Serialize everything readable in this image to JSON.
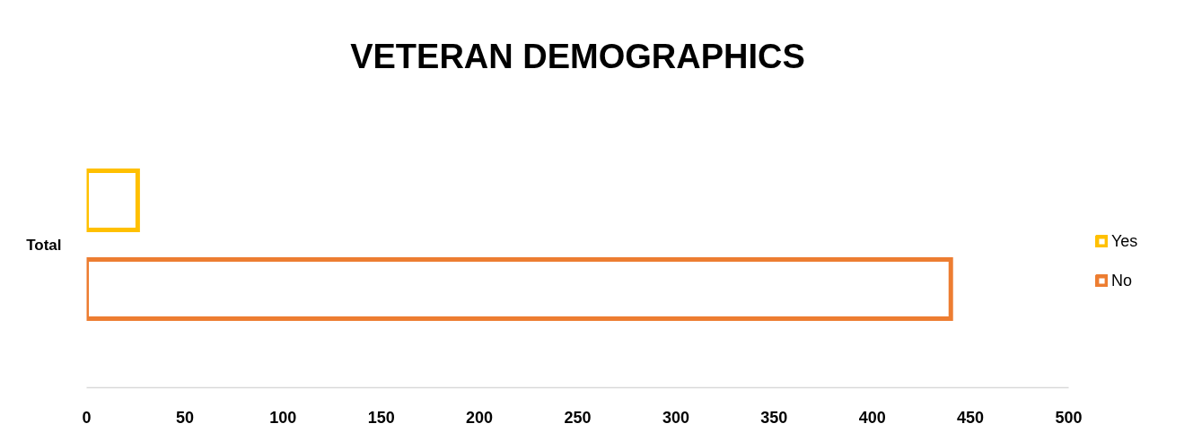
{
  "chart_data": {
    "type": "bar",
    "title": "VETERAN DEMOGRAPHICS",
    "orientation": "horizontal",
    "categories": [
      "Total"
    ],
    "series": [
      {
        "name": "Yes",
        "color": "#ffc000",
        "values": [
          26
        ]
      },
      {
        "name": "No",
        "color": "#ed7d31",
        "values": [
          440
        ]
      }
    ],
    "xlim": [
      0,
      500
    ],
    "xticks": [
      0,
      50,
      100,
      150,
      200,
      250,
      300,
      350,
      400,
      450,
      500
    ],
    "grid": false,
    "legend": "right"
  }
}
